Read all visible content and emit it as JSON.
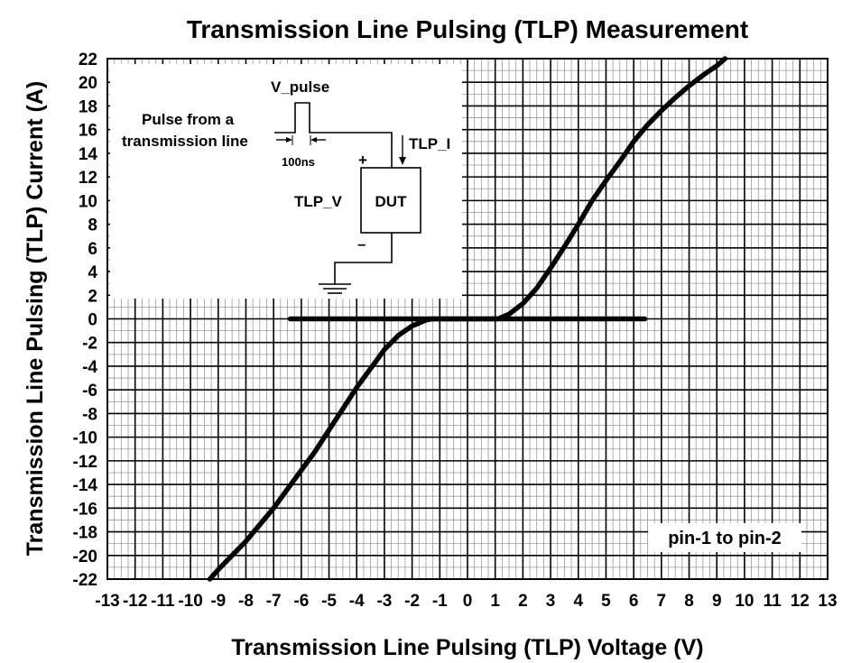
{
  "chart_data": {
    "type": "line",
    "title": "Transmission Line Pulsing (TLP) Measurement",
    "xlabel": "Transmission Line Pulsing (TLP) Voltage (V)",
    "ylabel": "Transmission Line Pulsing (TLP) Current (A)",
    "xlim": [
      -13,
      13
    ],
    "ylim": [
      -22,
      22
    ],
    "xticks": [
      -13,
      -12,
      -11,
      -10,
      -9,
      -8,
      -7,
      -6,
      -5,
      -4,
      -3,
      -2,
      -1,
      0,
      1,
      2,
      3,
      4,
      5,
      6,
      7,
      8,
      9,
      10,
      11,
      12,
      13
    ],
    "yticks": [
      -22,
      -20,
      -18,
      -16,
      -14,
      -12,
      -10,
      -8,
      -6,
      -4,
      -2,
      0,
      2,
      4,
      6,
      8,
      10,
      12,
      14,
      16,
      18,
      20,
      22
    ],
    "grid": true,
    "annotation": "pin-1 to pin-2",
    "series": [
      {
        "x": [
          -9.3,
          -9,
          -8.5,
          -8,
          -7.5,
          -7,
          -6.5,
          -6,
          -5.5,
          -5,
          -4.5,
          -4,
          -3.5,
          -3,
          -2.5,
          -2,
          -1.5,
          -1.3,
          1.1,
          1.5,
          2,
          2.5,
          3,
          3.5,
          4,
          4.5,
          5,
          5.5,
          6,
          6.5,
          7,
          7.5,
          8,
          8.5,
          9,
          9.3
        ],
        "y": [
          -22,
          -21.2,
          -20,
          -18.8,
          -17.4,
          -16,
          -14.4,
          -12.8,
          -11.2,
          -9.4,
          -7.6,
          -5.8,
          -4.2,
          -2.6,
          -1.4,
          -0.6,
          -0.1,
          0,
          0,
          0.4,
          1.3,
          2.6,
          4.3,
          6.1,
          8,
          10,
          11.7,
          13.3,
          15,
          16.4,
          17.6,
          18.7,
          19.7,
          20.6,
          21.4,
          22
        ]
      },
      {
        "x": [
          -6.4,
          6.4
        ],
        "y": [
          0,
          0
        ]
      }
    ]
  },
  "inset": {
    "v_pulse": "V_pulse",
    "pulse_line1": "Pulse from a",
    "pulse_line2": "transmission line",
    "duration": "100ns",
    "tlp_i": "TLP_I",
    "tlp_v": "TLP_V",
    "plus": "+",
    "minus": "–",
    "dut": "DUT"
  }
}
